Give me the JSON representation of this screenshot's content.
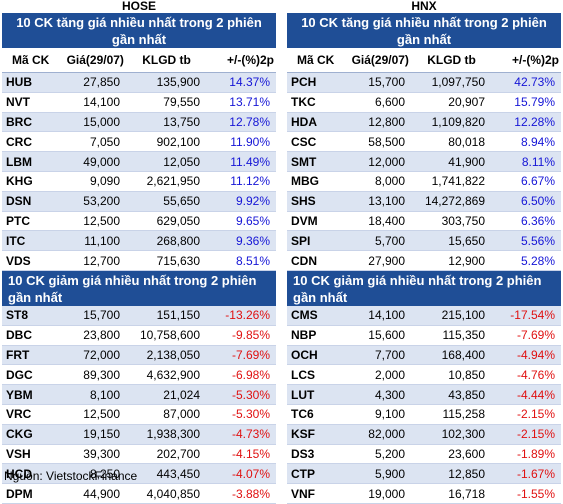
{
  "hose": {
    "exchange": "HOSE",
    "up_title": "10 CK tăng giá nhiều nhất trong 2 phiên gần nhất",
    "columns": [
      "Mã CK",
      "Giá(29/07)",
      "KLGD tb",
      "+/-(%)2p"
    ],
    "up_rows": [
      {
        "sym": "HUB",
        "price": "27,850",
        "vol": "135,900",
        "pct": "14.37%"
      },
      {
        "sym": "NVT",
        "price": "14,100",
        "vol": "79,550",
        "pct": "13.71%"
      },
      {
        "sym": "BRC",
        "price": "15,000",
        "vol": "13,750",
        "pct": "12.78%"
      },
      {
        "sym": "CRC",
        "price": "7,050",
        "vol": "902,100",
        "pct": "11.90%"
      },
      {
        "sym": "LBM",
        "price": "49,000",
        "vol": "12,050",
        "pct": "11.49%"
      },
      {
        "sym": "KHG",
        "price": "9,090",
        "vol": "2,621,950",
        "pct": "11.12%"
      },
      {
        "sym": "DSN",
        "price": "53,200",
        "vol": "55,650",
        "pct": "9.92%"
      },
      {
        "sym": "PTC",
        "price": "12,500",
        "vol": "629,050",
        "pct": "9.65%"
      },
      {
        "sym": "ITC",
        "price": "11,100",
        "vol": "268,800",
        "pct": "9.36%"
      },
      {
        "sym": "VDS",
        "price": "12,700",
        "vol": "715,630",
        "pct": "8.51%"
      }
    ],
    "down_title": "10 CK giảm giá nhiều nhất trong 2 phiên gần nhất",
    "down_rows": [
      {
        "sym": "ST8",
        "price": "15,700",
        "vol": "151,150",
        "pct": "-13.26%"
      },
      {
        "sym": "DBC",
        "price": "23,800",
        "vol": "10,758,600",
        "pct": "-9.85%"
      },
      {
        "sym": "FRT",
        "price": "72,000",
        "vol": "2,138,050",
        "pct": "-7.69%"
      },
      {
        "sym": "DGC",
        "price": "89,300",
        "vol": "4,632,900",
        "pct": "-6.98%"
      },
      {
        "sym": "YBM",
        "price": "8,100",
        "vol": "21,024",
        "pct": "-5.30%"
      },
      {
        "sym": "VRC",
        "price": "12,500",
        "vol": "87,000",
        "pct": "-5.30%"
      },
      {
        "sym": "CKG",
        "price": "19,150",
        "vol": "1,938,300",
        "pct": "-4.73%"
      },
      {
        "sym": "VSH",
        "price": "39,300",
        "vol": "202,700",
        "pct": "-4.15%"
      },
      {
        "sym": "HCD",
        "price": "8,250",
        "vol": "443,450",
        "pct": "-4.07%"
      },
      {
        "sym": "DPM",
        "price": "44,900",
        "vol": "4,040,850",
        "pct": "-3.88%"
      }
    ]
  },
  "hnx": {
    "exchange": "HNX",
    "up_title": "10 CK tăng giá nhiều nhất trong 2 phiên gần nhất",
    "columns": [
      "Mã CK",
      "Giá(29/07)",
      "KLGD tb",
      "+/-(%)2p"
    ],
    "up_rows": [
      {
        "sym": "PCH",
        "price": "15,700",
        "vol": "1,097,750",
        "pct": "42.73%"
      },
      {
        "sym": "TKC",
        "price": "6,600",
        "vol": "20,907",
        "pct": "15.79%"
      },
      {
        "sym": "HDA",
        "price": "12,800",
        "vol": "1,109,820",
        "pct": "12.28%"
      },
      {
        "sym": "CSC",
        "price": "58,500",
        "vol": "80,018",
        "pct": "8.94%"
      },
      {
        "sym": "SMT",
        "price": "12,000",
        "vol": "41,900",
        "pct": "8.11%"
      },
      {
        "sym": "MBG",
        "price": "8,000",
        "vol": "1,741,822",
        "pct": "6.67%"
      },
      {
        "sym": "SHS",
        "price": "13,100",
        "vol": "14,272,869",
        "pct": "6.50%"
      },
      {
        "sym": "DVM",
        "price": "18,400",
        "vol": "303,750",
        "pct": "6.36%"
      },
      {
        "sym": "SPI",
        "price": "5,700",
        "vol": "15,650",
        "pct": "5.56%"
      },
      {
        "sym": "CDN",
        "price": "27,900",
        "vol": "12,900",
        "pct": "5.28%"
      }
    ],
    "down_title": "10 CK giảm giá nhiều nhất trong 2 phiên gần nhất",
    "down_rows": [
      {
        "sym": "CMS",
        "price": "14,100",
        "vol": "215,100",
        "pct": "-17.54%"
      },
      {
        "sym": "NBP",
        "price": "15,600",
        "vol": "115,350",
        "pct": "-7.69%"
      },
      {
        "sym": "OCH",
        "price": "7,700",
        "vol": "168,400",
        "pct": "-4.94%"
      },
      {
        "sym": "LCS",
        "price": "2,000",
        "vol": "10,850",
        "pct": "-4.76%"
      },
      {
        "sym": "LUT",
        "price": "4,300",
        "vol": "43,850",
        "pct": "-4.44%"
      },
      {
        "sym": "TC6",
        "price": "9,100",
        "vol": "115,258",
        "pct": "-2.15%"
      },
      {
        "sym": "KSF",
        "price": "82,000",
        "vol": "102,300",
        "pct": "-2.15%"
      },
      {
        "sym": "DS3",
        "price": "5,200",
        "vol": "23,600",
        "pct": "-1.89%"
      },
      {
        "sym": "CTP",
        "price": "5,900",
        "vol": "12,850",
        "pct": "-1.67%"
      },
      {
        "sym": "VNF",
        "price": "19,000",
        "vol": "16,718",
        "pct": "-1.55%"
      }
    ]
  },
  "source": "Nguồn: VietstockFinance",
  "colors": {
    "header_bg": "#1f4e96",
    "row_alt": "#dce4f2",
    "up": "#1515d6",
    "down": "#e01010"
  }
}
